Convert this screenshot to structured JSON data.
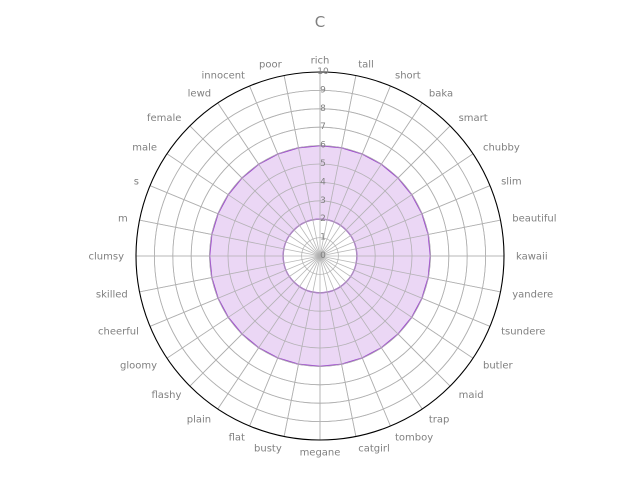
{
  "chart_data": {
    "type": "radar",
    "title": "C",
    "categories": [
      "rich",
      "tall",
      "short",
      "baka",
      "smart",
      "chubby",
      "slim",
      "beautiful",
      "kawaii",
      "yandere",
      "tsundere",
      "butler",
      "maid",
      "trap",
      "tomboy",
      "catgirl",
      "megane",
      "busty",
      "flat",
      "plain",
      "flashy",
      "gloomy",
      "cheerful",
      "skilled",
      "clumsy",
      "m",
      "s",
      "male",
      "female",
      "lewd",
      "innocent",
      "poor"
    ],
    "series": [
      {
        "values": [
          6,
          6,
          6,
          6,
          6,
          6,
          6,
          6,
          6,
          6,
          6,
          6,
          6,
          6,
          6,
          6,
          6,
          6,
          6,
          6,
          6,
          6,
          6,
          6,
          6,
          6,
          6,
          6,
          6,
          6,
          6,
          6
        ],
        "line_color": "#9b3fd1",
        "fill_color": "#e8d0f3"
      }
    ],
    "inner_circle_value": 2,
    "inner_circle_color": "#9b3fd1",
    "rlim": [
      0,
      10
    ],
    "r_ticks": [
      "0",
      "1",
      "2",
      "3",
      "4",
      "5",
      "6",
      "7",
      "8",
      "9",
      "10"
    ],
    "grid": true,
    "grid_color": "#b0b0b0",
    "outer_ring_color": "#000000"
  }
}
